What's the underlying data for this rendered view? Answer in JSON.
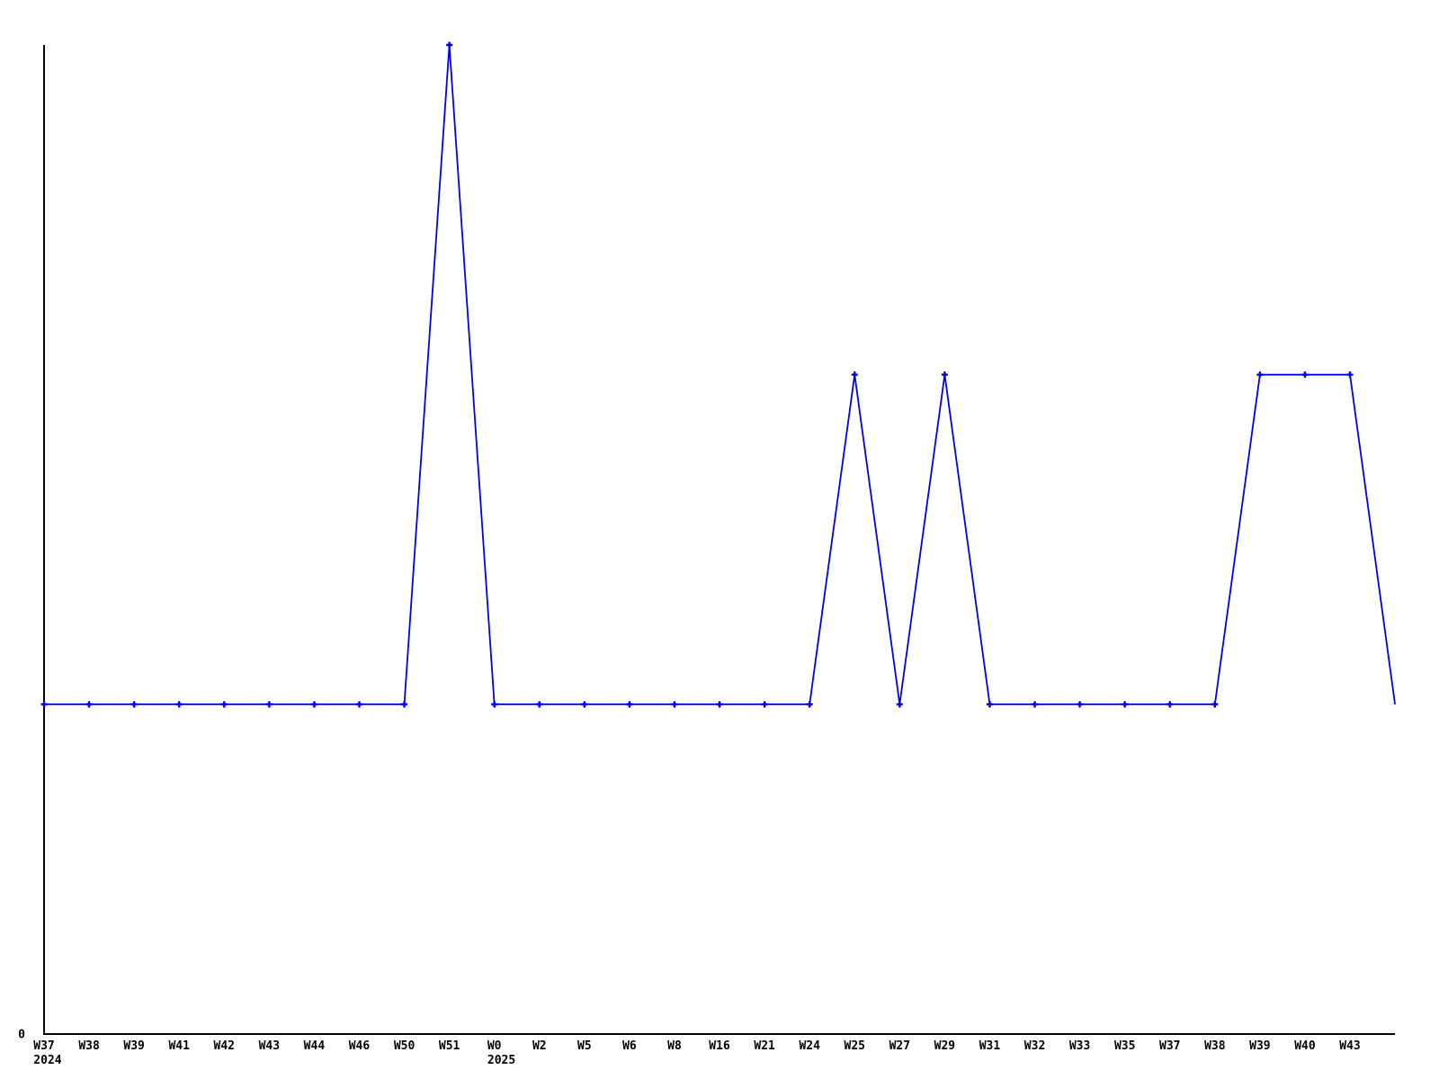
{
  "chart_data": {
    "type": "line",
    "title": "",
    "xlabel": "",
    "ylabel": "",
    "categories": [
      "W37",
      "W38",
      "W39",
      "W41",
      "W42",
      "W43",
      "W44",
      "W46",
      "W50",
      "W51",
      "W0",
      "W2",
      "W5",
      "W6",
      "W8",
      "W16",
      "W21",
      "W24",
      "W25",
      "W27",
      "W29",
      "W31",
      "W32",
      "W33",
      "W35",
      "W37",
      "W38",
      "W39",
      "W40",
      "W43"
    ],
    "values": [
      1,
      1,
      1,
      1,
      1,
      1,
      1,
      1,
      1,
      3,
      1,
      1,
      1,
      1,
      1,
      1,
      1,
      1,
      2,
      1,
      2,
      1,
      1,
      1,
      1,
      1,
      1,
      2,
      2,
      2
    ],
    "trailing_point": {
      "label": "",
      "value": 1
    },
    "year_labels": [
      {
        "at_category_index": 0,
        "text": "2024"
      },
      {
        "at_category_index": 10,
        "text": "2025"
      }
    ],
    "y_ticks": [
      "0"
    ],
    "ylim": [
      0,
      3
    ],
    "grid": false,
    "legend": null,
    "marker_style": "plus",
    "colors": {
      "line": "#0000ee",
      "axis": "#000000",
      "text": "#000000",
      "background": "#ffffff"
    }
  }
}
